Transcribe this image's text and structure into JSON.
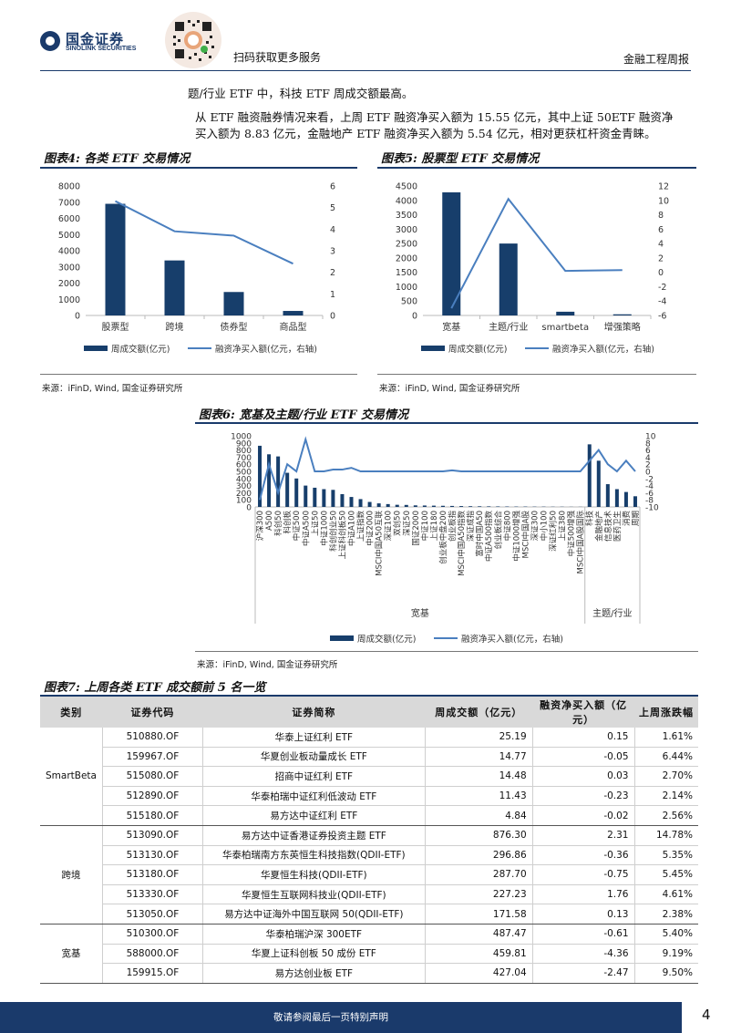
{
  "header": {
    "brand_cn": "国金证券",
    "brand_en": "SINOLINK SECURITIES",
    "scan_text": "扫码获取更多服务",
    "report_type": "金融工程周报"
  },
  "paragraph": {
    "line1": "题/行业 ETF 中，科技 ETF 周成交额最高。",
    "line2": "从 ETF 融资融券情况来看，上周 ETF 融资净买入额为 15.55 亿元，其中上证 50ETF 融资净",
    "line3": "买入额为 8.83 亿元，金融地产 ETF 融资净买入额为 5.54 亿元，相对更获杠杆资金青睐。"
  },
  "fig4": {
    "title": "图表4: 各类 ETF 交易情况",
    "source": "来源：iFinD, Wind, 国金证券研究所"
  },
  "fig5": {
    "title": "图表5: 股票型 ETF 交易情况",
    "source": "来源：iFinD, Wind, 国金证券研究所"
  },
  "fig6": {
    "title": "图表6: 宽基及主题/行业 ETF 交易情况",
    "source": "来源：iFinD, Wind, 国金证券研究所"
  },
  "chart_data": [
    {
      "id": "fig4",
      "type": "bar",
      "categories": [
        "股票型",
        "跨境",
        "债券型",
        "商品型"
      ],
      "series": [
        {
          "name": "周成交额(亿元)",
          "type": "bar",
          "axis": "left",
          "values": [
            6900,
            3400,
            1450,
            280
          ]
        },
        {
          "name": "融资净买入额(亿元，右轴)",
          "type": "line",
          "axis": "right",
          "values": [
            5.3,
            3.9,
            3.7,
            2.4
          ]
        }
      ],
      "ylim": [
        0,
        8000
      ],
      "yticks": [
        0,
        1000,
        2000,
        3000,
        4000,
        5000,
        6000,
        7000,
        8000
      ],
      "y2lim": [
        0,
        6
      ],
      "y2ticks": [
        0,
        1,
        2,
        3,
        4,
        5,
        6
      ]
    },
    {
      "id": "fig5",
      "type": "bar",
      "categories": [
        "宽基",
        "主题/行业",
        "smartbeta",
        "增强策略"
      ],
      "series": [
        {
          "name": "周成交额(亿元)",
          "type": "bar",
          "axis": "left",
          "values": [
            4280,
            2500,
            130,
            40
          ]
        },
        {
          "name": "融资净买入额(亿元，右轴)",
          "type": "line",
          "axis": "right",
          "values": [
            -5,
            10.2,
            0.2,
            0.3
          ]
        }
      ],
      "ylim": [
        0,
        4500
      ],
      "yticks": [
        0,
        500,
        1000,
        1500,
        2000,
        2500,
        3000,
        3500,
        4000,
        4500
      ],
      "y2lim": [
        -6,
        12
      ],
      "y2ticks": [
        -6,
        -4,
        -2,
        0,
        2,
        4,
        6,
        8,
        10,
        12
      ]
    },
    {
      "id": "fig6",
      "type": "bar",
      "groups": [
        {
          "name": "宽基",
          "categories": [
            "沪深300",
            "A500",
            "科创50",
            "科创板",
            "中证500",
            "中证A500",
            "上证50",
            "中证1000",
            "科创创业50",
            "上证科创板50",
            "中证A100",
            "上证指数",
            "中证2000",
            "MSCI中国A50互联",
            "深证100",
            "双创50",
            "深证50",
            "国证2000",
            "中证100",
            "上证180",
            "创业板中盘200",
            "创业板指",
            "MSCI中国A50指数",
            "深证成指",
            "富时中国A50",
            "中证A500指数",
            "创业板综合",
            "中证800",
            "中证1000增强",
            "MSCI中国A股",
            "深证300",
            "中小100",
            "深证红利50",
            "上证380",
            "中证500增强",
            "MSCI中国A股国际"
          ],
          "values": [
            860,
            740,
            710,
            480,
            400,
            300,
            270,
            250,
            240,
            180,
            140,
            110,
            70,
            50,
            40,
            30,
            28,
            22,
            20,
            18,
            16,
            14,
            12,
            10,
            9,
            8,
            7,
            6,
            5,
            5,
            4,
            4,
            3,
            3,
            2,
            2
          ],
          "right_values": [
            -8,
            2,
            -6,
            2,
            0,
            9,
            0,
            0,
            0.5,
            0.5,
            1,
            0,
            0,
            0,
            0,
            0,
            0,
            0,
            0,
            0,
            0,
            0.3,
            0,
            0,
            0,
            0,
            0,
            0,
            0,
            0,
            0,
            0,
            0,
            0,
            0,
            0
          ]
        },
        {
          "name": "主题/行业",
          "categories": [
            "科技",
            "金融地产",
            "信息技术",
            "医药卫生",
            "消费",
            "周期"
          ],
          "values": [
            880,
            650,
            320,
            250,
            210,
            150
          ],
          "right_values": [
            3,
            6,
            2,
            0,
            3,
            0
          ]
        }
      ],
      "series_names": [
        "周成交额(亿元)",
        "融资净买入额(亿元，右轴)"
      ],
      "ylim": [
        0,
        1000
      ],
      "yticks": [
        0,
        100,
        200,
        300,
        400,
        500,
        600,
        700,
        800,
        900,
        1000
      ],
      "y2lim": [
        -10,
        10
      ],
      "y2ticks": [
        -10,
        -8,
        -6,
        -4,
        -2,
        0,
        2,
        4,
        6,
        8,
        10
      ]
    }
  ],
  "fig7": {
    "title": "图表7: 上周各类 ETF 成交额前 5 名一览",
    "headers": [
      "类别",
      "证券代码",
      "证券简称",
      "周成交额（亿元）",
      "融资净买入额（亿元）",
      "上周涨跌幅"
    ],
    "groups": [
      {
        "category": "SmartBeta",
        "rows": [
          [
            "510880.OF",
            "华泰上证红利 ETF",
            "25.19",
            "0.15",
            "1.61%"
          ],
          [
            "159967.OF",
            "华夏创业板动量成长 ETF",
            "14.77",
            "-0.05",
            "6.44%"
          ],
          [
            "515080.OF",
            "招商中证红利 ETF",
            "14.48",
            "0.03",
            "2.70%"
          ],
          [
            "512890.OF",
            "华泰柏瑞中证红利低波动 ETF",
            "11.43",
            "-0.23",
            "2.14%"
          ],
          [
            "515180.OF",
            "易方达中证红利 ETF",
            "4.84",
            "-0.02",
            "2.56%"
          ]
        ]
      },
      {
        "category": "跨境",
        "rows": [
          [
            "513090.OF",
            "易方达中证香港证券投资主题 ETF",
            "876.30",
            "2.31",
            "14.78%"
          ],
          [
            "513130.OF",
            "华泰柏瑞南方东英恒生科技指数(QDII-ETF)",
            "296.86",
            "-0.36",
            "5.35%"
          ],
          [
            "513180.OF",
            "华夏恒生科技(QDII-ETF)",
            "287.70",
            "-0.75",
            "5.45%"
          ],
          [
            "513330.OF",
            "华夏恒生互联网科技业(QDII-ETF)",
            "227.23",
            "1.76",
            "4.61%"
          ],
          [
            "513050.OF",
            "易方达中证海外中国互联网 50(QDII-ETF)",
            "171.58",
            "0.13",
            "2.38%"
          ]
        ]
      },
      {
        "category": "宽基",
        "rows": [
          [
            "510300.OF",
            "华泰柏瑞沪深 300ETF",
            "487.47",
            "-0.61",
            "5.40%"
          ],
          [
            "588000.OF",
            "华夏上证科创板 50 成份 ETF",
            "459.81",
            "-4.36",
            "9.19%"
          ],
          [
            "159915.OF",
            "易方达创业板 ETF",
            "427.04",
            "-2.47",
            "9.50%"
          ]
        ]
      }
    ]
  },
  "footer": {
    "disclaimer": "敬请参阅最后一页特别声明",
    "page": "4"
  },
  "colors": {
    "bar": "#173e6b",
    "line": "#4a7fbf",
    "navy": "#1a3a6b"
  }
}
